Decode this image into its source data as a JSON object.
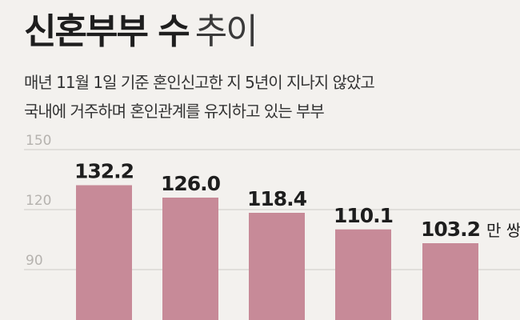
{
  "title_bold": "신혼부부 수",
  "title_light": "추이",
  "subtitle_line1": "매년 11월 1일 기준 혼인신고한 지 5년이 지나지 않았고",
  "subtitle_line2": "국내에 거주하며 혼인관계를 유지하고 있는 부부",
  "colors": {
    "bar": "#c78a98",
    "grid": "#cdcac6",
    "tick": "#b5b2ae",
    "label": "#1e1e1e",
    "background": "#f3f1ee"
  },
  "chart_data": {
    "type": "bar",
    "categories": [
      "",
      "",
      "",
      "",
      ""
    ],
    "values": [
      132.2,
      126.0,
      118.4,
      110.1,
      103.2
    ],
    "value_labels": [
      "132.2",
      "126.0",
      "118.4",
      "110.1",
      "103.2"
    ],
    "unit": "만 쌍",
    "yticks": [
      150,
      120,
      90
    ],
    "ylim": [
      75,
      150
    ],
    "grid": true
  }
}
